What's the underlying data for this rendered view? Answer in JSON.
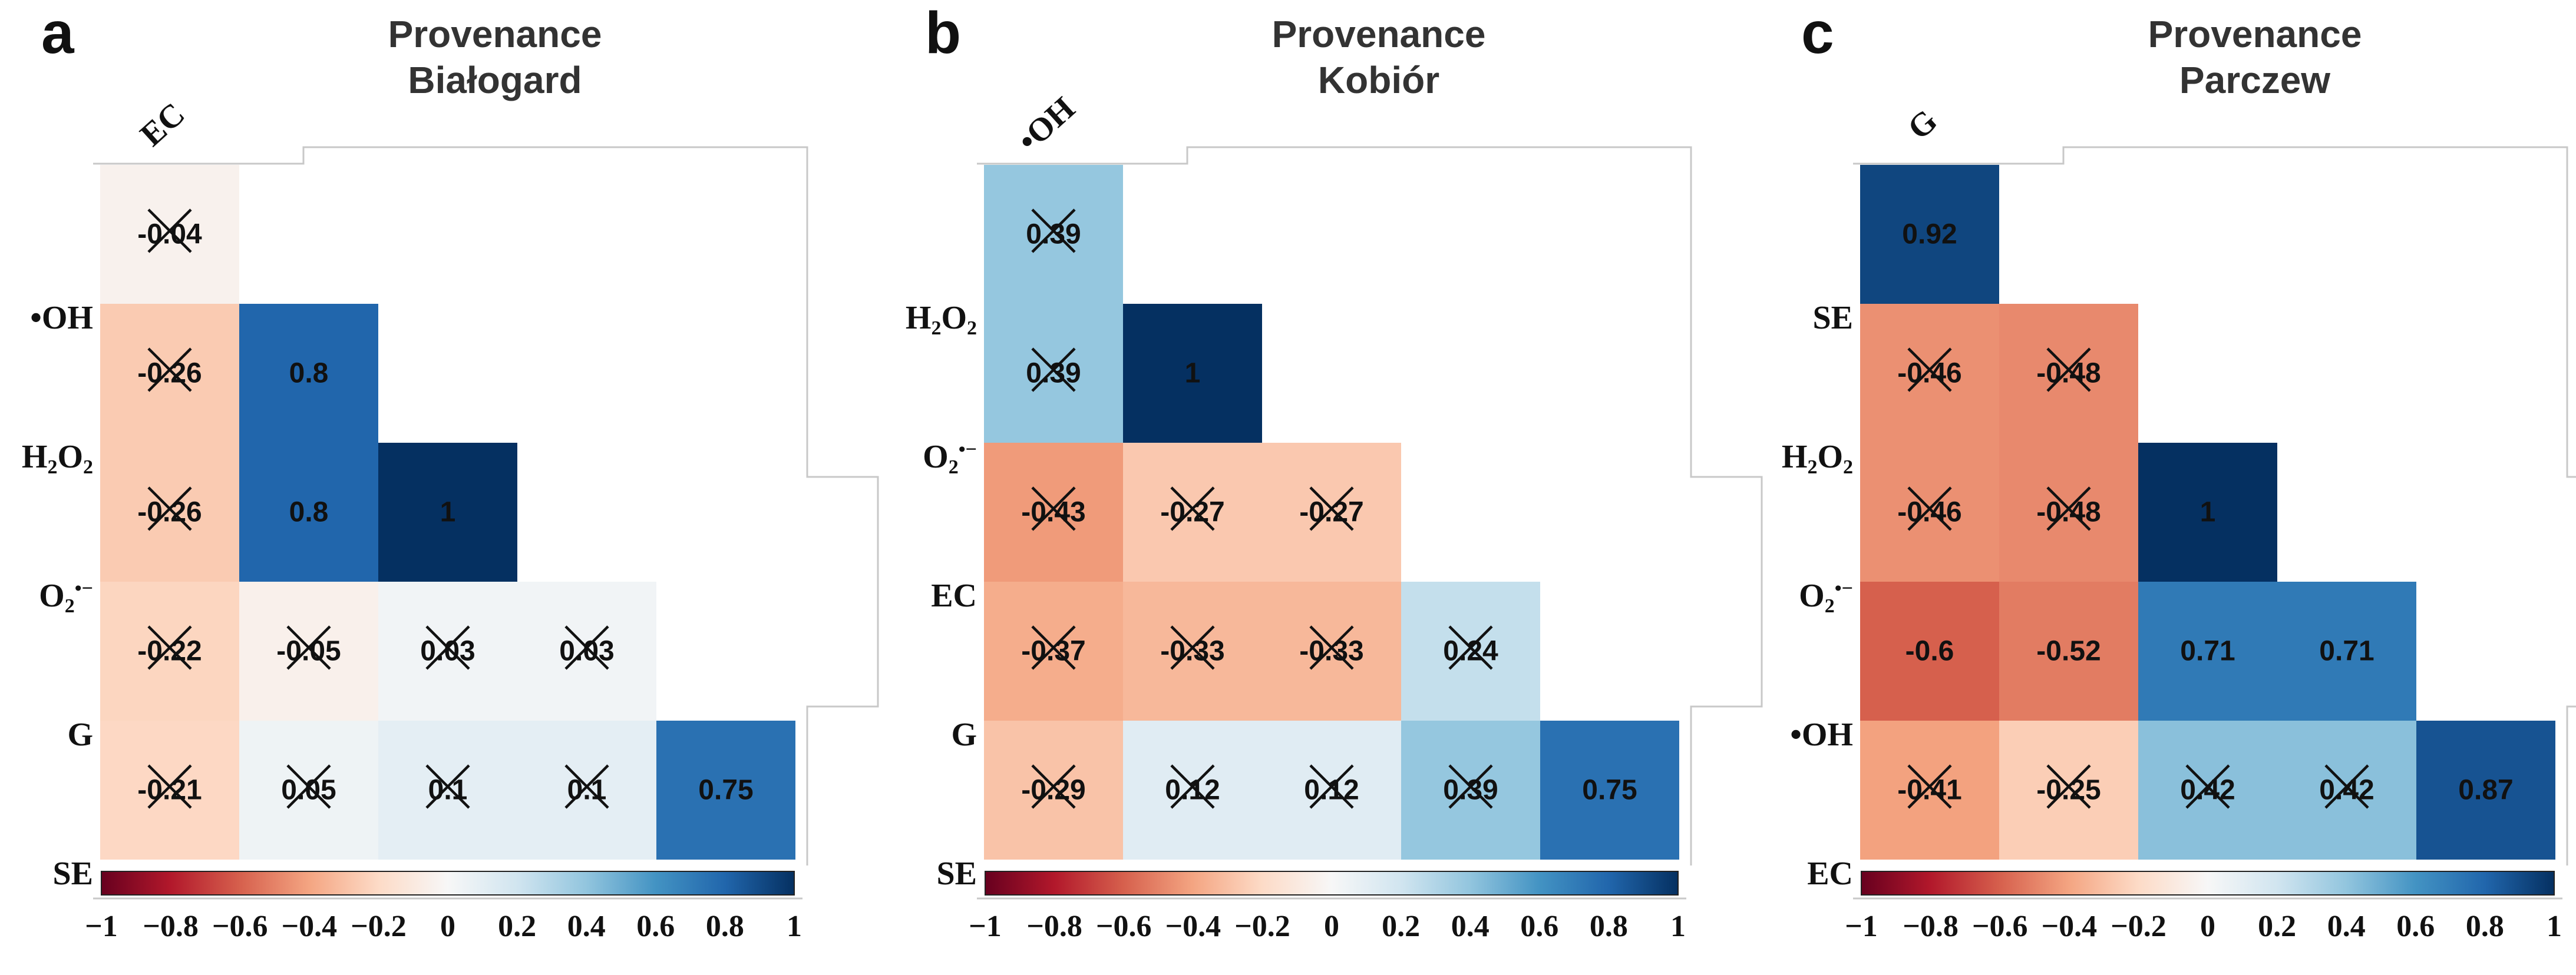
{
  "chart_data": [
    {
      "type": "heatmap",
      "panel_label": "a",
      "title_lines": [
        "Provenance",
        "Białogard"
      ],
      "variables": [
        "EC",
        "•OH",
        "H2O2",
        "O2•−",
        "G",
        "SE"
      ],
      "top_label": "EC",
      "row_labels": [
        "•OH",
        "H2O2",
        "O2•−",
        "G",
        "SE"
      ],
      "diagonal_labels": [
        "•OH",
        "H2O2",
        "O2•−",
        "G"
      ],
      "cells": [
        {
          "row": 1,
          "col": 0,
          "value": -0.04,
          "label": "-0.04",
          "crossed": true
        },
        {
          "row": 2,
          "col": 0,
          "value": -0.26,
          "label": "-0.26",
          "crossed": true
        },
        {
          "row": 2,
          "col": 1,
          "value": 0.8,
          "label": "0.8",
          "crossed": false
        },
        {
          "row": 3,
          "col": 0,
          "value": -0.26,
          "label": "-0.26",
          "crossed": true
        },
        {
          "row": 3,
          "col": 1,
          "value": 0.8,
          "label": "0.8",
          "crossed": false
        },
        {
          "row": 3,
          "col": 2,
          "value": 1,
          "label": "1",
          "crossed": false
        },
        {
          "row": 4,
          "col": 0,
          "value": -0.22,
          "label": "-0.22",
          "crossed": true
        },
        {
          "row": 4,
          "col": 1,
          "value": -0.05,
          "label": "-0.05",
          "crossed": true
        },
        {
          "row": 4,
          "col": 2,
          "value": 0.03,
          "label": "0.03",
          "crossed": true
        },
        {
          "row": 4,
          "col": 3,
          "value": 0.03,
          "label": "0.03",
          "crossed": true
        },
        {
          "row": 5,
          "col": 0,
          "value": -0.21,
          "label": "-0.21",
          "crossed": true
        },
        {
          "row": 5,
          "col": 1,
          "value": 0.05,
          "label": "0.05",
          "crossed": true
        },
        {
          "row": 5,
          "col": 2,
          "value": 0.1,
          "label": "0.1",
          "crossed": true
        },
        {
          "row": 5,
          "col": 3,
          "value": 0.1,
          "label": "0.1",
          "crossed": true
        },
        {
          "row": 5,
          "col": 4,
          "value": 0.75,
          "label": "0.75",
          "crossed": false
        }
      ],
      "colorbar": {
        "range": [
          -1,
          1
        ],
        "ticks": [
          "−1",
          "−0.8",
          "−0.6",
          "−0.4",
          "−0.2",
          "0",
          "0.2",
          "0.4",
          "0.6",
          "0.8",
          "1"
        ]
      }
    },
    {
      "type": "heatmap",
      "panel_label": "b",
      "title_lines": [
        "Provenance",
        "Kobiór"
      ],
      "variables": [
        "•OH",
        "H2O2",
        "O2•−",
        "EC",
        "G",
        "SE"
      ],
      "top_label": "•OH",
      "row_labels": [
        "H2O2",
        "O2•−",
        "EC",
        "G",
        "SE"
      ],
      "diagonal_labels": [
        "H2O2",
        "O2•−",
        "EC",
        "G"
      ],
      "cells": [
        {
          "row": 1,
          "col": 0,
          "value": 0.39,
          "label": "0.39",
          "crossed": true
        },
        {
          "row": 2,
          "col": 0,
          "value": 0.39,
          "label": "0.39",
          "crossed": true
        },
        {
          "row": 2,
          "col": 1,
          "value": 1,
          "label": "1",
          "crossed": false
        },
        {
          "row": 3,
          "col": 0,
          "value": -0.43,
          "label": "-0.43",
          "crossed": true
        },
        {
          "row": 3,
          "col": 1,
          "value": -0.27,
          "label": "-0.27",
          "crossed": true
        },
        {
          "row": 3,
          "col": 2,
          "value": -0.27,
          "label": "-0.27",
          "crossed": true
        },
        {
          "row": 4,
          "col": 0,
          "value": -0.37,
          "label": "-0.37",
          "crossed": true
        },
        {
          "row": 4,
          "col": 1,
          "value": -0.33,
          "label": "-0.33",
          "crossed": true
        },
        {
          "row": 4,
          "col": 2,
          "value": -0.33,
          "label": "-0.33",
          "crossed": true
        },
        {
          "row": 4,
          "col": 3,
          "value": 0.24,
          "label": "0.24",
          "crossed": true
        },
        {
          "row": 5,
          "col": 0,
          "value": -0.29,
          "label": "-0.29",
          "crossed": true
        },
        {
          "row": 5,
          "col": 1,
          "value": 0.12,
          "label": "0.12",
          "crossed": true
        },
        {
          "row": 5,
          "col": 2,
          "value": 0.12,
          "label": "0.12",
          "crossed": true
        },
        {
          "row": 5,
          "col": 3,
          "value": 0.39,
          "label": "0.39",
          "crossed": true
        },
        {
          "row": 5,
          "col": 4,
          "value": 0.75,
          "label": "0.75",
          "crossed": false
        }
      ],
      "colorbar": {
        "range": [
          -1,
          1
        ],
        "ticks": [
          "−1",
          "−0.8",
          "−0.6",
          "−0.4",
          "−0.2",
          "0",
          "0.2",
          "0.4",
          "0.6",
          "0.8",
          "1"
        ]
      }
    },
    {
      "type": "heatmap",
      "panel_label": "c",
      "title_lines": [
        "Provenance",
        "Parczew"
      ],
      "variables": [
        "G",
        "SE",
        "H2O2",
        "O2•−",
        "•OH",
        "EC"
      ],
      "top_label": "G",
      "row_labels": [
        "SE",
        "H2O2",
        "O2•−",
        "•OH",
        "EC"
      ],
      "diagonal_labels": [
        "SE",
        "H2O2",
        "O2•−",
        "•OH"
      ],
      "cells": [
        {
          "row": 1,
          "col": 0,
          "value": 0.92,
          "label": "0.92",
          "crossed": false
        },
        {
          "row": 2,
          "col": 0,
          "value": -0.46,
          "label": "-0.46",
          "crossed": true
        },
        {
          "row": 2,
          "col": 1,
          "value": -0.48,
          "label": "-0.48",
          "crossed": true
        },
        {
          "row": 3,
          "col": 0,
          "value": -0.46,
          "label": "-0.46",
          "crossed": true
        },
        {
          "row": 3,
          "col": 1,
          "value": -0.48,
          "label": "-0.48",
          "crossed": true
        },
        {
          "row": 3,
          "col": 2,
          "value": 1,
          "label": "1",
          "crossed": false
        },
        {
          "row": 4,
          "col": 0,
          "value": -0.6,
          "label": "-0.6",
          "crossed": false
        },
        {
          "row": 4,
          "col": 1,
          "value": -0.52,
          "label": "-0.52",
          "crossed": false
        },
        {
          "row": 4,
          "col": 2,
          "value": 0.71,
          "label": "0.71",
          "crossed": false
        },
        {
          "row": 4,
          "col": 3,
          "value": 0.71,
          "label": "0.71",
          "crossed": false
        },
        {
          "row": 5,
          "col": 0,
          "value": -0.41,
          "label": "-0.41",
          "crossed": true
        },
        {
          "row": 5,
          "col": 1,
          "value": -0.25,
          "label": "-0.25",
          "crossed": true
        },
        {
          "row": 5,
          "col": 2,
          "value": 0.42,
          "label": "0.42",
          "crossed": true
        },
        {
          "row": 5,
          "col": 3,
          "value": 0.42,
          "label": "0.42",
          "crossed": true
        },
        {
          "row": 5,
          "col": 4,
          "value": 0.87,
          "label": "0.87",
          "crossed": false
        }
      ],
      "colorbar": {
        "range": [
          -1,
          1
        ],
        "ticks": [
          "−1",
          "−0.8",
          "−0.6",
          "−0.4",
          "−0.2",
          "0",
          "0.2",
          "0.4",
          "0.6",
          "0.8",
          "1"
        ]
      }
    }
  ]
}
